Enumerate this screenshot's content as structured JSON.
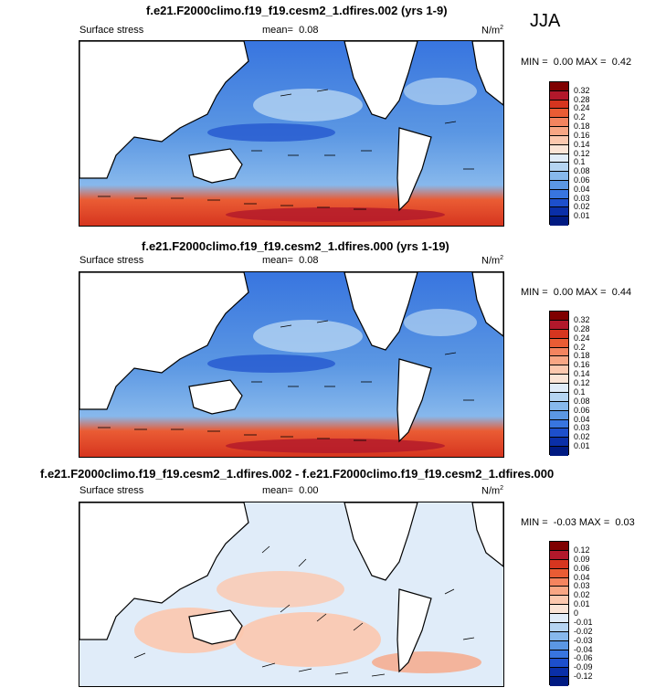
{
  "season": "JJA",
  "panels": [
    {
      "title": "f.e21.F2000climo.f19_f19.cesm2_1.dfires.002 (yrs 1-9)",
      "variable": "Surface stress",
      "mean_label": "mean=",
      "mean_value": "0.08",
      "units": "N/m",
      "units_exp": "2",
      "min_label": "MIN =",
      "min_value": "0.00",
      "max_label": "MAX =",
      "max_value": "0.42",
      "colorbar": {
        "ticks": [
          "0.32",
          "0.28",
          "0.24",
          "0.2",
          "0.18",
          "0.16",
          "0.14",
          "0.12",
          "0.1",
          "0.08",
          "0.06",
          "0.04",
          "0.03",
          "0.02",
          "0.01"
        ],
        "colors": [
          "#7f0000",
          "#b2182b",
          "#d6351f",
          "#ea5c34",
          "#f4845f",
          "#f8a684",
          "#fcc8ae",
          "#fbe4d6",
          "#e0ecf9",
          "#b5d4f2",
          "#87b8ec",
          "#5b97e3",
          "#3875df",
          "#1d4fcc",
          "#0a2fa8",
          "#001a82"
        ]
      }
    },
    {
      "title": "f.e21.F2000climo.f19_f19.cesm2_1.dfires.000 (yrs 1-19)",
      "variable": "Surface stress",
      "mean_label": "mean=",
      "mean_value": "0.08",
      "units": "N/m",
      "units_exp": "2",
      "min_label": "MIN =",
      "min_value": "0.00",
      "max_label": "MAX =",
      "max_value": "0.44",
      "colorbar": {
        "ticks": [
          "0.32",
          "0.28",
          "0.24",
          "0.2",
          "0.18",
          "0.16",
          "0.14",
          "0.12",
          "0.1",
          "0.08",
          "0.06",
          "0.04",
          "0.03",
          "0.02",
          "0.01"
        ],
        "colors": [
          "#7f0000",
          "#b2182b",
          "#d6351f",
          "#ea5c34",
          "#f4845f",
          "#f8a684",
          "#fcc8ae",
          "#fbe4d6",
          "#e0ecf9",
          "#b5d4f2",
          "#87b8ec",
          "#5b97e3",
          "#3875df",
          "#1d4fcc",
          "#0a2fa8",
          "#001a82"
        ]
      }
    },
    {
      "title": "f.e21.F2000climo.f19_f19.cesm2_1.dfires.002 - f.e21.F2000climo.f19_f19.cesm2_1.dfires.000",
      "variable": "Surface stress",
      "mean_label": "mean=",
      "mean_value": "0.00",
      "units": "N/m",
      "units_exp": "2",
      "min_label": "MIN =",
      "min_value": "-0.03",
      "max_label": "MAX =",
      "max_value": "0.03",
      "colorbar": {
        "ticks": [
          "0.12",
          "0.09",
          "0.06",
          "0.04",
          "0.03",
          "0.02",
          "0.01",
          "0",
          "-0.01",
          "-0.02",
          "-0.03",
          "-0.04",
          "-0.06",
          "-0.09",
          "-0.12"
        ],
        "colors": [
          "#7f0000",
          "#b2182b",
          "#d6351f",
          "#ea5c34",
          "#f4845f",
          "#f8a684",
          "#fcc8ae",
          "#fbe4d6",
          "#e0ecf9",
          "#b5d4f2",
          "#87b8ec",
          "#5b97e3",
          "#3875df",
          "#1d4fcc",
          "#0a2fa8",
          "#001a82"
        ]
      }
    }
  ]
}
